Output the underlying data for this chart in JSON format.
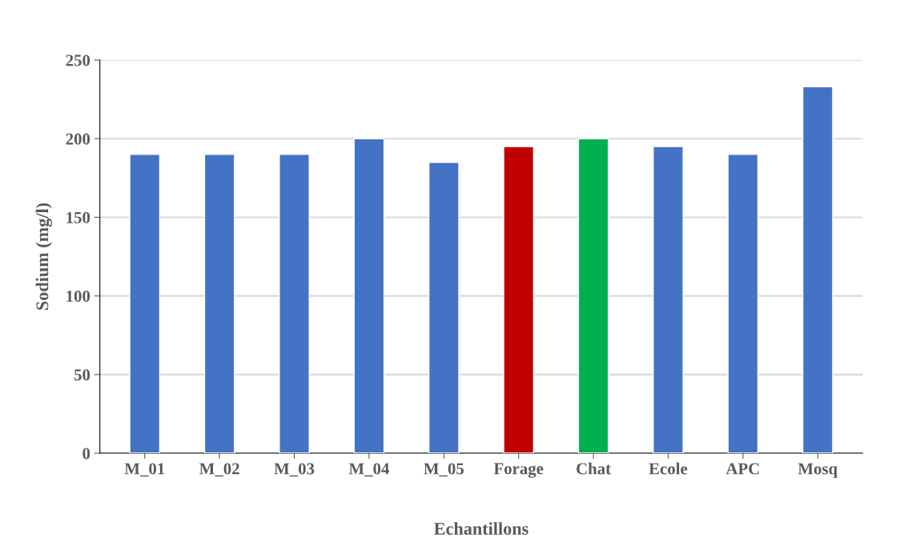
{
  "chart_data": {
    "type": "bar",
    "xlabel": "Echantillons",
    "ylabel": "Sodium (mg/l)",
    "categories": [
      "M_01",
      "M_02",
      "M_03",
      "M_04",
      "M_05",
      "Forage",
      "Chat",
      "Ecole",
      "APC",
      "Mosq"
    ],
    "values": [
      190,
      190,
      190,
      200,
      185,
      195,
      200,
      195,
      190,
      233
    ],
    "colors": [
      "#4472c4",
      "#4472c4",
      "#4472c4",
      "#4472c4",
      "#4472c4",
      "#c00000",
      "#00b050",
      "#4472c4",
      "#4472c4",
      "#4472c4"
    ],
    "ylim": [
      0,
      250
    ],
    "yticks": [
      0,
      50,
      100,
      150,
      200,
      250
    ],
    "grid": "y"
  }
}
